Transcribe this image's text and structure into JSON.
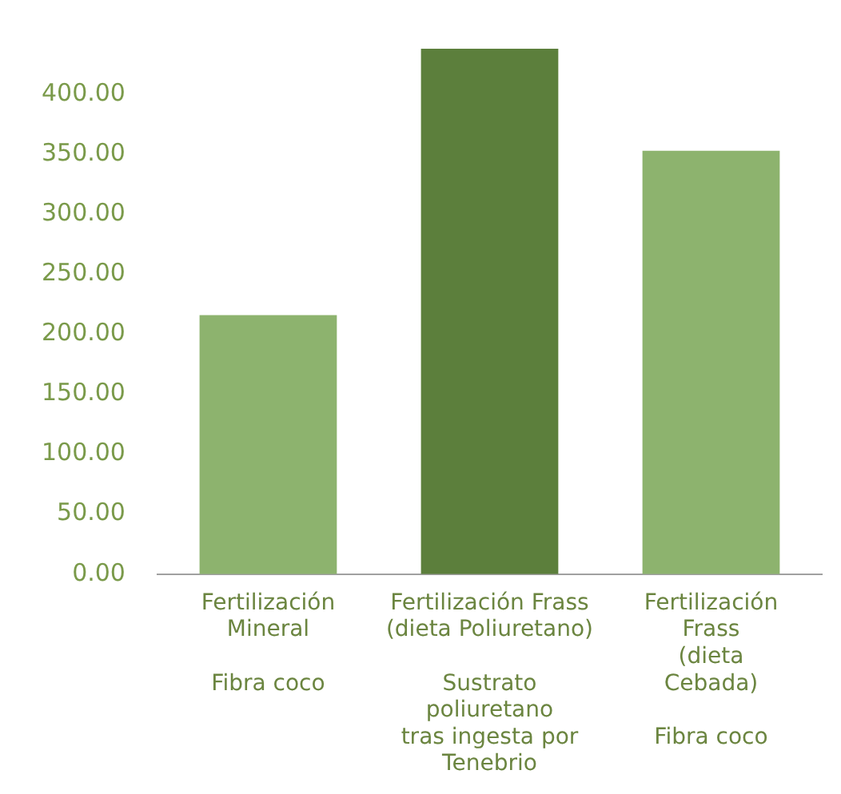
{
  "chart_data": {
    "type": "bar",
    "categories": [
      "Fertilización\nMineral\n\nFibra coco",
      "Fertilización Frass\n(dieta Poliuretano)\n\nSustrato\npoliuretano\ntras ingesta por\nTenebrio",
      "Fertilización\nFrass\n(dieta\nCebada)\n\nFibra coco"
    ],
    "values": [
      216,
      438,
      353
    ],
    "colors": [
      "#8db36e",
      "#5c7f3c",
      "#8db36e"
    ],
    "ylim": [
      0,
      440
    ],
    "yticks": [
      {
        "value": 0,
        "label": "0.00"
      },
      {
        "value": 50,
        "label": "50.00"
      },
      {
        "value": 100,
        "label": "100.00"
      },
      {
        "value": 150,
        "label": "150.00"
      },
      {
        "value": 200,
        "label": "200.00"
      },
      {
        "value": 250,
        "label": "250.00"
      },
      {
        "value": 300,
        "label": "300.00"
      },
      {
        "value": 350,
        "label": "350.00"
      },
      {
        "value": 400,
        "label": "400.00"
      }
    ],
    "grid": false,
    "legend": false
  }
}
